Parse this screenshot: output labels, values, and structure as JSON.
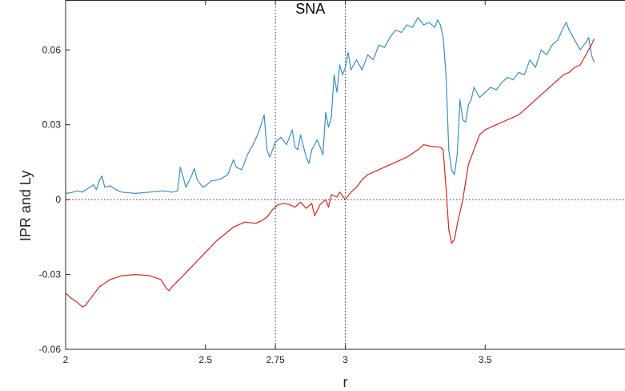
{
  "chart_data": {
    "type": "line",
    "title": "",
    "xlabel": "r",
    "ylabel": "IPR and Ly",
    "xlim": [
      2,
      4
    ],
    "ylim": [
      -0.06,
      0.08
    ],
    "x_ticks": [
      2,
      2.5,
      2.75,
      3,
      3.5
    ],
    "x_tick_labels": [
      "2",
      "2.5",
      "2.75",
      "3",
      "3.5"
    ],
    "y_ticks": [
      -0.06,
      -0.03,
      0,
      0.03,
      0.06
    ],
    "y_tick_labels": [
      "-0.06",
      "-0.03",
      "0",
      "0.03",
      "0.06"
    ],
    "grid": false,
    "reference_lines": [
      {
        "orientation": "horizontal",
        "value": 0,
        "style": "dotted"
      },
      {
        "orientation": "vertical",
        "value": 2.75,
        "style": "dotted"
      },
      {
        "orientation": "vertical",
        "value": 3.0,
        "style": "dotted"
      }
    ],
    "annotations": [
      {
        "text": "SNA",
        "x": 2.875,
        "y": 0.0745
      }
    ],
    "series": [
      {
        "color": "#3a8fc7",
        "points": [
          [
            2.0,
            0.0025
          ],
          [
            2.02,
            0.0028
          ],
          [
            2.04,
            0.0035
          ],
          [
            2.06,
            0.003
          ],
          [
            2.08,
            0.0045
          ],
          [
            2.1,
            0.006
          ],
          [
            2.11,
            0.004
          ],
          [
            2.12,
            0.0075
          ],
          [
            2.13,
            0.0095
          ],
          [
            2.14,
            0.005
          ],
          [
            2.16,
            0.0055
          ],
          [
            2.18,
            0.004
          ],
          [
            2.2,
            0.003
          ],
          [
            2.25,
            0.0025
          ],
          [
            2.3,
            0.003
          ],
          [
            2.35,
            0.0035
          ],
          [
            2.38,
            0.003
          ],
          [
            2.4,
            0.0035
          ],
          [
            2.41,
            0.013
          ],
          [
            2.42,
            0.009
          ],
          [
            2.43,
            0.005
          ],
          [
            2.45,
            0.0095
          ],
          [
            2.46,
            0.0125
          ],
          [
            2.47,
            0.008
          ],
          [
            2.49,
            0.005
          ],
          [
            2.5,
            0.0055
          ],
          [
            2.52,
            0.0075
          ],
          [
            2.55,
            0.008
          ],
          [
            2.58,
            0.01
          ],
          [
            2.6,
            0.016
          ],
          [
            2.61,
            0.013
          ],
          [
            2.63,
            0.012
          ],
          [
            2.65,
            0.018
          ],
          [
            2.67,
            0.022
          ],
          [
            2.69,
            0.027
          ],
          [
            2.71,
            0.034
          ],
          [
            2.72,
            0.02
          ],
          [
            2.73,
            0.017
          ],
          [
            2.75,
            0.023
          ],
          [
            2.77,
            0.025
          ],
          [
            2.79,
            0.022
          ],
          [
            2.81,
            0.028
          ],
          [
            2.82,
            0.021
          ],
          [
            2.83,
            0.02
          ],
          [
            2.84,
            0.026
          ],
          [
            2.86,
            0.017
          ],
          [
            2.87,
            0.0145
          ],
          [
            2.88,
            0.02
          ],
          [
            2.9,
            0.024
          ],
          [
            2.91,
            0.021
          ],
          [
            2.92,
            0.018
          ],
          [
            2.93,
            0.035
          ],
          [
            2.94,
            0.029
          ],
          [
            2.95,
            0.033
          ],
          [
            2.96,
            0.05
          ],
          [
            2.97,
            0.043
          ],
          [
            2.98,
            0.054
          ],
          [
            2.99,
            0.05
          ],
          [
            3.0,
            0.053
          ],
          [
            3.01,
            0.059
          ],
          [
            3.02,
            0.052
          ],
          [
            3.04,
            0.056
          ],
          [
            3.06,
            0.052
          ],
          [
            3.08,
            0.058
          ],
          [
            3.1,
            0.056
          ],
          [
            3.12,
            0.062
          ],
          [
            3.14,
            0.061
          ],
          [
            3.16,
            0.065
          ],
          [
            3.18,
            0.068
          ],
          [
            3.2,
            0.067
          ],
          [
            3.22,
            0.07
          ],
          [
            3.24,
            0.069
          ],
          [
            3.26,
            0.073
          ],
          [
            3.28,
            0.07
          ],
          [
            3.3,
            0.071
          ],
          [
            3.32,
            0.069
          ],
          [
            3.33,
            0.072
          ],
          [
            3.34,
            0.07
          ],
          [
            3.35,
            0.065
          ],
          [
            3.36,
            0.05
          ],
          [
            3.37,
            0.02
          ],
          [
            3.38,
            0.012
          ],
          [
            3.39,
            0.01
          ],
          [
            3.4,
            0.018
          ],
          [
            3.41,
            0.04
          ],
          [
            3.42,
            0.032
          ],
          [
            3.43,
            0.031
          ],
          [
            3.44,
            0.038
          ],
          [
            3.45,
            0.04
          ],
          [
            3.46,
            0.045
          ],
          [
            3.48,
            0.041
          ],
          [
            3.5,
            0.043
          ],
          [
            3.52,
            0.045
          ],
          [
            3.54,
            0.044
          ],
          [
            3.56,
            0.047
          ],
          [
            3.58,
            0.049
          ],
          [
            3.6,
            0.048
          ],
          [
            3.62,
            0.051
          ],
          [
            3.64,
            0.05
          ],
          [
            3.66,
            0.056
          ],
          [
            3.68,
            0.053
          ],
          [
            3.7,
            0.06
          ],
          [
            3.72,
            0.058
          ],
          [
            3.74,
            0.062
          ],
          [
            3.76,
            0.064
          ],
          [
            3.78,
            0.069
          ],
          [
            3.79,
            0.071
          ],
          [
            3.8,
            0.068
          ],
          [
            3.82,
            0.064
          ],
          [
            3.84,
            0.06
          ],
          [
            3.86,
            0.063
          ],
          [
            3.87,
            0.065
          ],
          [
            3.88,
            0.058
          ],
          [
            3.89,
            0.055
          ]
        ]
      },
      {
        "color": "#e2211c",
        "points": [
          [
            2.0,
            -0.0375
          ],
          [
            2.02,
            -0.0395
          ],
          [
            2.04,
            -0.041
          ],
          [
            2.06,
            -0.043
          ],
          [
            2.07,
            -0.0425
          ],
          [
            2.09,
            -0.0395
          ],
          [
            2.12,
            -0.035
          ],
          [
            2.16,
            -0.032
          ],
          [
            2.2,
            -0.0305
          ],
          [
            2.25,
            -0.03
          ],
          [
            2.3,
            -0.0305
          ],
          [
            2.34,
            -0.032
          ],
          [
            2.36,
            -0.0355
          ],
          [
            2.37,
            -0.0365
          ],
          [
            2.38,
            -0.035
          ],
          [
            2.42,
            -0.0305
          ],
          [
            2.48,
            -0.0235
          ],
          [
            2.54,
            -0.0165
          ],
          [
            2.6,
            -0.011
          ],
          [
            2.64,
            -0.009
          ],
          [
            2.68,
            -0.0095
          ],
          [
            2.7,
            -0.0085
          ],
          [
            2.72,
            -0.007
          ],
          [
            2.74,
            -0.004
          ],
          [
            2.76,
            -0.002
          ],
          [
            2.78,
            -0.0015
          ],
          [
            2.8,
            -0.002
          ],
          [
            2.82,
            -0.003
          ],
          [
            2.84,
            -0.001
          ],
          [
            2.86,
            -0.0035
          ],
          [
            2.88,
            -0.0015
          ],
          [
            2.89,
            -0.0065
          ],
          [
            2.91,
            -0.002
          ],
          [
            2.93,
            0.0
          ],
          [
            2.94,
            -0.003
          ],
          [
            2.95,
            0.002
          ],
          [
            2.97,
            0.001
          ],
          [
            2.98,
            0.003
          ],
          [
            3.0,
            0.0
          ],
          [
            3.02,
            0.003
          ],
          [
            3.04,
            0.005
          ],
          [
            3.06,
            0.008
          ],
          [
            3.08,
            0.01
          ],
          [
            3.1,
            0.011
          ],
          [
            3.14,
            0.013
          ],
          [
            3.18,
            0.015
          ],
          [
            3.22,
            0.017
          ],
          [
            3.26,
            0.02
          ],
          [
            3.28,
            0.022
          ],
          [
            3.3,
            0.0215
          ],
          [
            3.34,
            0.021
          ],
          [
            3.35,
            0.02
          ],
          [
            3.36,
            0.005
          ],
          [
            3.37,
            -0.012
          ],
          [
            3.38,
            -0.0175
          ],
          [
            3.39,
            -0.016
          ],
          [
            3.4,
            -0.01
          ],
          [
            3.42,
            0.0
          ],
          [
            3.44,
            0.014
          ],
          [
            3.46,
            0.02
          ],
          [
            3.48,
            0.026
          ],
          [
            3.5,
            0.028
          ],
          [
            3.54,
            0.03
          ],
          [
            3.58,
            0.032
          ],
          [
            3.62,
            0.034
          ],
          [
            3.66,
            0.038
          ],
          [
            3.7,
            0.042
          ],
          [
            3.74,
            0.046
          ],
          [
            3.78,
            0.05
          ],
          [
            3.8,
            0.051
          ],
          [
            3.82,
            0.053
          ],
          [
            3.84,
            0.054
          ],
          [
            3.86,
            0.058
          ],
          [
            3.88,
            0.062
          ],
          [
            3.89,
            0.0645
          ]
        ]
      }
    ]
  }
}
